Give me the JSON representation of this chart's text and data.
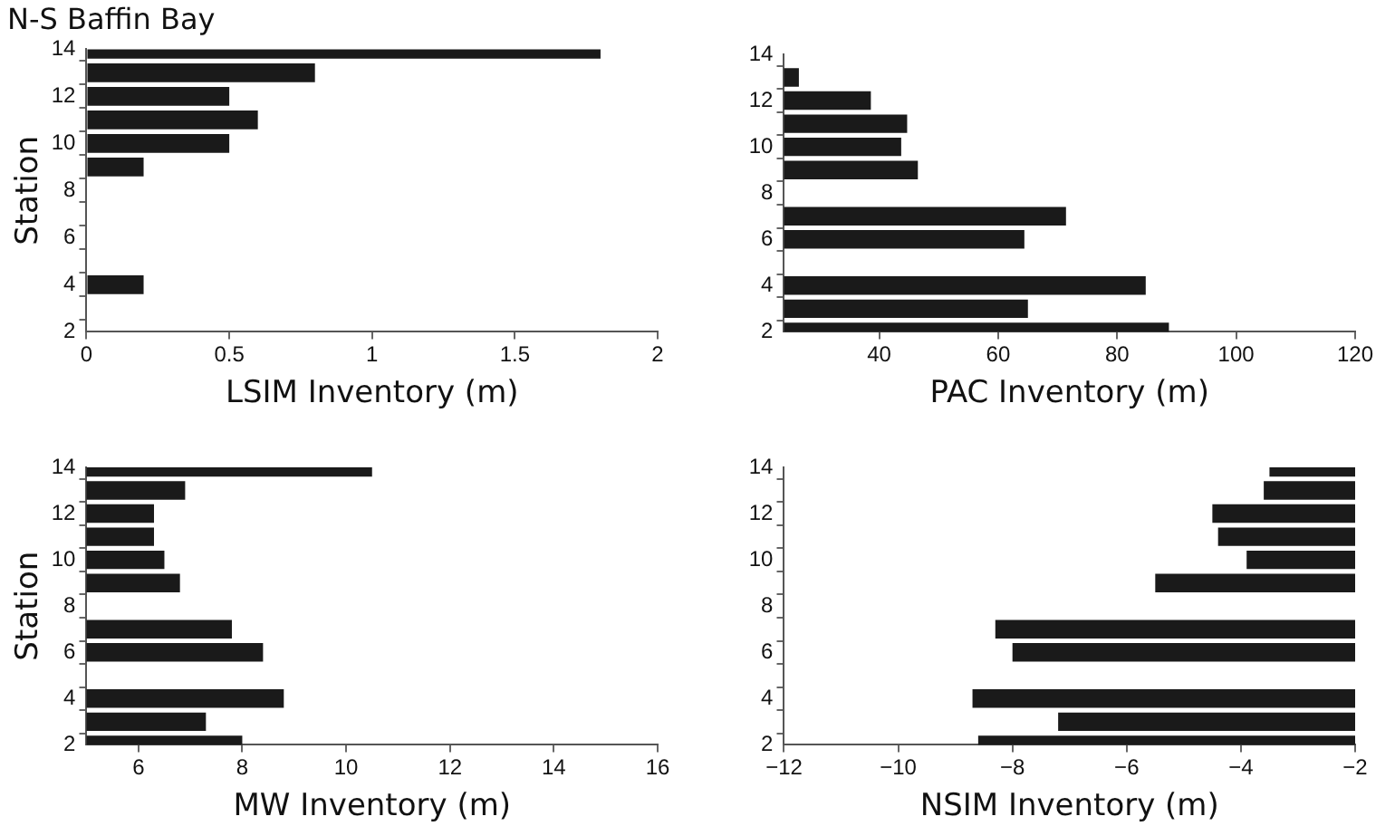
{
  "chart_data": [
    {
      "type": "bar",
      "orientation": "horizontal",
      "title": "N-S Baffin Bay",
      "xlabel": "LSIM Inventory (m)",
      "ylabel": "Station",
      "categories": [
        "14",
        null,
        "12",
        null,
        "10",
        null,
        "8",
        null,
        "6",
        null,
        "4",
        null,
        "2"
      ],
      "values": [
        1.8,
        0.8,
        0.5,
        0.6,
        0.5,
        0.2,
        null,
        null,
        null,
        null,
        0.2,
        null,
        null
      ],
      "color": "#1a1a1a",
      "xlim": [
        0,
        2
      ],
      "xticks": [
        0,
        0.5,
        1,
        1.5,
        2
      ],
      "grid": false,
      "legend": false
    },
    {
      "type": "bar",
      "orientation": "horizontal",
      "xlabel": "PAC Inventory (m)",
      "categories": [
        "14",
        null,
        "12",
        null,
        "10",
        null,
        "8",
        null,
        "6",
        null,
        "4",
        null,
        "2"
      ],
      "values": [
        null,
        26.5,
        38.6,
        44.7,
        43.7,
        46.5,
        null,
        71.4,
        64.4,
        null,
        84.8,
        65,
        88.7
      ],
      "color": "#1a1a1a",
      "xlim": [
        24,
        120
      ],
      "xticks": [
        40,
        60,
        80,
        100,
        120
      ],
      "grid": false,
      "legend": false
    },
    {
      "type": "bar",
      "orientation": "horizontal",
      "xlabel": "MW Inventory (m)",
      "ylabel": "Station",
      "categories": [
        "14",
        null,
        "12",
        null,
        "10",
        null,
        "8",
        null,
        "6",
        null,
        "4",
        null,
        "2"
      ],
      "values": [
        10.5,
        6.9,
        6.3,
        6.3,
        6.5,
        6.8,
        null,
        7.8,
        8.4,
        null,
        8.8,
        7.3,
        8.0
      ],
      "color": "#1a1a1a",
      "xlim": [
        5,
        16
      ],
      "xticks": [
        6,
        8,
        10,
        12,
        14,
        16
      ],
      "grid": false,
      "legend": false
    },
    {
      "type": "bar",
      "orientation": "horizontal",
      "xlabel": "NSIM Inventory (m)",
      "categories": [
        "14",
        null,
        "12",
        null,
        "10",
        null,
        "8",
        null,
        "6",
        null,
        "4",
        null,
        "2"
      ],
      "values": [
        -3.5,
        -3.6,
        -4.5,
        -4.4,
        -3.9,
        -5.5,
        null,
        -8.3,
        -8.0,
        null,
        -8.7,
        -7.2,
        -8.6
      ],
      "color": "#1a1a1a",
      "xlim": [
        -12,
        -2
      ],
      "xticks": [
        -12,
        -10,
        -8,
        -6,
        -4,
        -2
      ],
      "grid": false,
      "legend": false
    }
  ]
}
